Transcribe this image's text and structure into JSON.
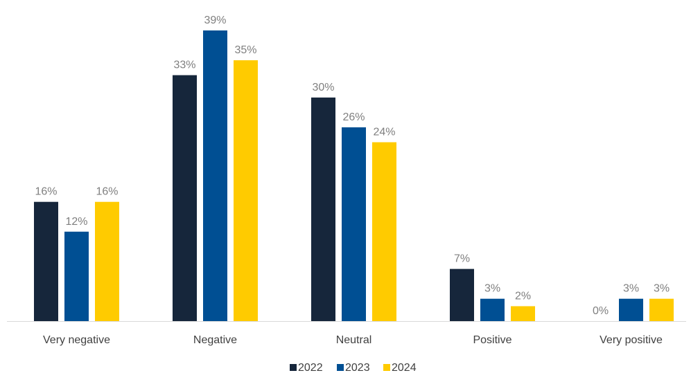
{
  "chart_data": {
    "type": "bar",
    "categories": [
      "Very negative",
      "Negative",
      "Neutral",
      "Positive",
      "Very positive"
    ],
    "series": [
      {
        "name": "2022",
        "color": "#16263b",
        "values": [
          16,
          33,
          30,
          7,
          0
        ],
        "labels": [
          "16%",
          "33%",
          "30%",
          "7%",
          "0%"
        ]
      },
      {
        "name": "2023",
        "color": "#004f93",
        "values": [
          12,
          39,
          26,
          3,
          3
        ],
        "labels": [
          "12%",
          "39%",
          "26%",
          "3%",
          "3%"
        ]
      },
      {
        "name": "2024",
        "color": "#ffcb00",
        "values": [
          16,
          35,
          24,
          2,
          3
        ],
        "labels": [
          "16%",
          "35%",
          "24%",
          "2%",
          "3%"
        ]
      }
    ],
    "ylim": [
      0,
      39
    ],
    "legend_position": "bottom-center",
    "grid": false,
    "axis_color": "#d9d9d9"
  }
}
